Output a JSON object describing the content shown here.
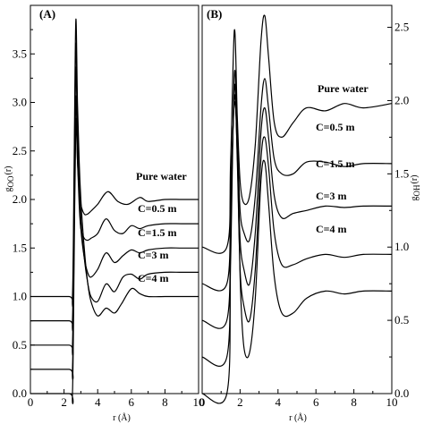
{
  "chart_data": [
    {
      "panel_label": "(A)",
      "type": "line",
      "ylabel": "g",
      "ylabel_sub": "OO",
      "ylabel_arg": "(r)",
      "xlabel": "r (Å)",
      "xlim": [
        0,
        10
      ],
      "ylim": [
        0,
        40
      ],
      "xticks": [
        "0",
        "2",
        "4",
        "6",
        "8",
        "10"
      ],
      "yticks": [
        "0.0",
        "0.5",
        "1.0",
        "1.5",
        "2.0",
        "2.5",
        "3.0",
        "3.5"
      ],
      "annotations": [
        "Pure water",
        "C=0.5 m",
        "C=1.5 m",
        "C=3 m",
        "C=4 m"
      ],
      "series": [
        {
          "x": [
            0,
            2.3,
            2.5,
            2.6,
            2.7,
            2.8,
            2.9,
            3.0,
            3.2,
            3.4,
            3.6,
            4.0,
            4.5,
            5.0,
            5.4,
            6.0,
            6.5,
            7.0,
            8.0,
            9.0,
            10.0
          ],
          "y": [
            10.0,
            10.0,
            10.0,
            24.0,
            38.5,
            30.0,
            24.0,
            20.0,
            15.0,
            11.5,
            9.5,
            8.0,
            8.8,
            8.3,
            9.2,
            10.8,
            10.3,
            10.0,
            10.0,
            10.0,
            10.0
          ]
        },
        {
          "x": [
            0,
            2.3,
            2.5,
            2.6,
            2.7,
            2.8,
            2.9,
            3.0,
            3.2,
            3.4,
            3.6,
            4.0,
            4.5,
            5.0,
            5.5,
            6.0,
            6.5,
            7.0,
            8.0,
            9.0,
            10.0
          ],
          "y": [
            7.5,
            7.5,
            7.5,
            21.5,
            36.0,
            28.0,
            22.0,
            18.0,
            14.0,
            11.5,
            10.0,
            9.5,
            11.3,
            10.5,
            12.0,
            12.3,
            11.8,
            12.3,
            12.5,
            12.5,
            12.5
          ]
        },
        {
          "x": [
            0,
            2.3,
            2.5,
            2.6,
            2.7,
            2.8,
            2.9,
            3.0,
            3.2,
            3.4,
            3.6,
            4.0,
            4.5,
            5.0,
            5.5,
            6.0,
            6.5,
            7.0,
            8.0,
            9.0,
            10.0
          ],
          "y": [
            5.0,
            5.0,
            5.0,
            19.0,
            33.5,
            26.0,
            20.5,
            17.0,
            14.0,
            12.5,
            12.0,
            12.8,
            14.5,
            13.5,
            14.2,
            14.8,
            14.5,
            14.8,
            15.0,
            15.0,
            15.0
          ]
        },
        {
          "x": [
            0,
            2.3,
            2.5,
            2.6,
            2.7,
            2.8,
            2.9,
            3.0,
            3.2,
            3.4,
            3.6,
            4.0,
            4.5,
            5.0,
            5.5,
            6.0,
            6.5,
            7.0,
            8.0,
            9.0,
            10.0
          ],
          "y": [
            2.5,
            2.5,
            2.5,
            16.5,
            30.5,
            24.0,
            19.5,
            17.0,
            16.0,
            15.8,
            16.0,
            16.5,
            18.0,
            16.8,
            16.5,
            17.3,
            17.0,
            17.3,
            17.5,
            17.5,
            17.5
          ]
        },
        {
          "x": [
            0,
            2.3,
            2.5,
            2.6,
            2.7,
            2.8,
            2.9,
            3.0,
            3.2,
            3.4,
            3.6,
            4.0,
            4.6,
            5.2,
            5.8,
            6.5,
            7.0,
            8.0,
            9.0,
            10.0
          ],
          "y": [
            0.0,
            0.0,
            0.0,
            14.0,
            28.0,
            24.0,
            21.0,
            19.5,
            18.5,
            18.5,
            18.8,
            19.5,
            20.8,
            19.8,
            19.5,
            20.2,
            19.8,
            20.0,
            20.0,
            20.0
          ]
        }
      ]
    },
    {
      "panel_label": "(B)",
      "type": "line",
      "ylabel": "g",
      "ylabel_sub": "OH",
      "ylabel_arg": "(r)",
      "xlabel": "r (Å)",
      "xlim": [
        0,
        10
      ],
      "ylim": [
        0,
        26.5
      ],
      "xticks": [
        "0",
        "2",
        "4",
        "6",
        "8",
        "10"
      ],
      "yticks": [
        "0.0",
        "0.5",
        "1.0",
        "1.5",
        "2.0",
        "2.5"
      ],
      "annotations": [
        "Pure water",
        "C=0.5 m",
        "C=1.5 m",
        "C=3 m",
        "C=4 m"
      ],
      "series": [
        {
          "x": [
            0,
            1.3,
            1.5,
            1.7,
            1.85,
            2.0,
            2.2,
            2.5,
            2.8,
            3.1,
            3.3,
            3.5,
            3.8,
            4.2,
            4.8,
            5.5,
            6.5,
            7.5,
            8.5,
            10.0
          ],
          "y": [
            0.0,
            0.0,
            9.0,
            21.8,
            17.0,
            8.0,
            3.2,
            2.8,
            6.5,
            14.5,
            15.8,
            13.0,
            8.0,
            5.5,
            5.5,
            6.5,
            7.0,
            6.8,
            7.0,
            7.0
          ]
        },
        {
          "x": [
            0,
            1.3,
            1.5,
            1.7,
            1.85,
            2.0,
            2.2,
            2.5,
            2.8,
            3.1,
            3.3,
            3.5,
            3.8,
            4.2,
            4.8,
            5.5,
            6.5,
            7.5,
            8.5,
            10.0
          ],
          "y": [
            2.5,
            2.5,
            11.0,
            21.0,
            16.0,
            8.5,
            6.0,
            5.0,
            8.5,
            16.0,
            17.5,
            15.5,
            11.0,
            8.8,
            8.8,
            9.2,
            9.5,
            9.3,
            9.5,
            9.5
          ]
        },
        {
          "x": [
            0,
            1.3,
            1.5,
            1.7,
            1.85,
            2.0,
            2.2,
            2.5,
            2.8,
            3.1,
            3.3,
            3.5,
            3.8,
            4.2,
            4.8,
            5.5,
            6.5,
            7.5,
            8.5,
            10.0
          ],
          "y": [
            5.0,
            5.0,
            12.5,
            20.3,
            16.5,
            10.5,
            8.5,
            7.5,
            11.0,
            17.8,
            19.5,
            17.5,
            13.5,
            12.0,
            12.3,
            12.5,
            12.8,
            12.7,
            12.8,
            12.8
          ]
        },
        {
          "x": [
            0,
            1.3,
            1.5,
            1.7,
            1.85,
            2.0,
            2.2,
            2.5,
            2.8,
            3.1,
            3.3,
            3.5,
            3.8,
            4.2,
            4.8,
            5.5,
            6.5,
            7.5,
            8.5,
            10.0
          ],
          "y": [
            7.5,
            7.5,
            14.0,
            19.8,
            17.5,
            12.5,
            11.0,
            10.5,
            13.5,
            19.5,
            21.5,
            19.5,
            16.0,
            15.0,
            15.0,
            15.8,
            15.8,
            15.5,
            15.7,
            15.7
          ]
        },
        {
          "x": [
            0,
            1.3,
            1.5,
            1.7,
            1.85,
            2.0,
            2.2,
            2.5,
            2.8,
            3.1,
            3.3,
            3.5,
            3.8,
            4.2,
            4.8,
            5.5,
            6.5,
            7.5,
            8.5,
            10.0
          ],
          "y": [
            10.0,
            10.0,
            15.8,
            24.8,
            19.0,
            14.5,
            13.0,
            13.5,
            17.0,
            24.0,
            25.8,
            23.0,
            18.5,
            17.5,
            18.5,
            19.5,
            19.3,
            19.8,
            19.5,
            19.8
          ]
        }
      ]
    }
  ]
}
